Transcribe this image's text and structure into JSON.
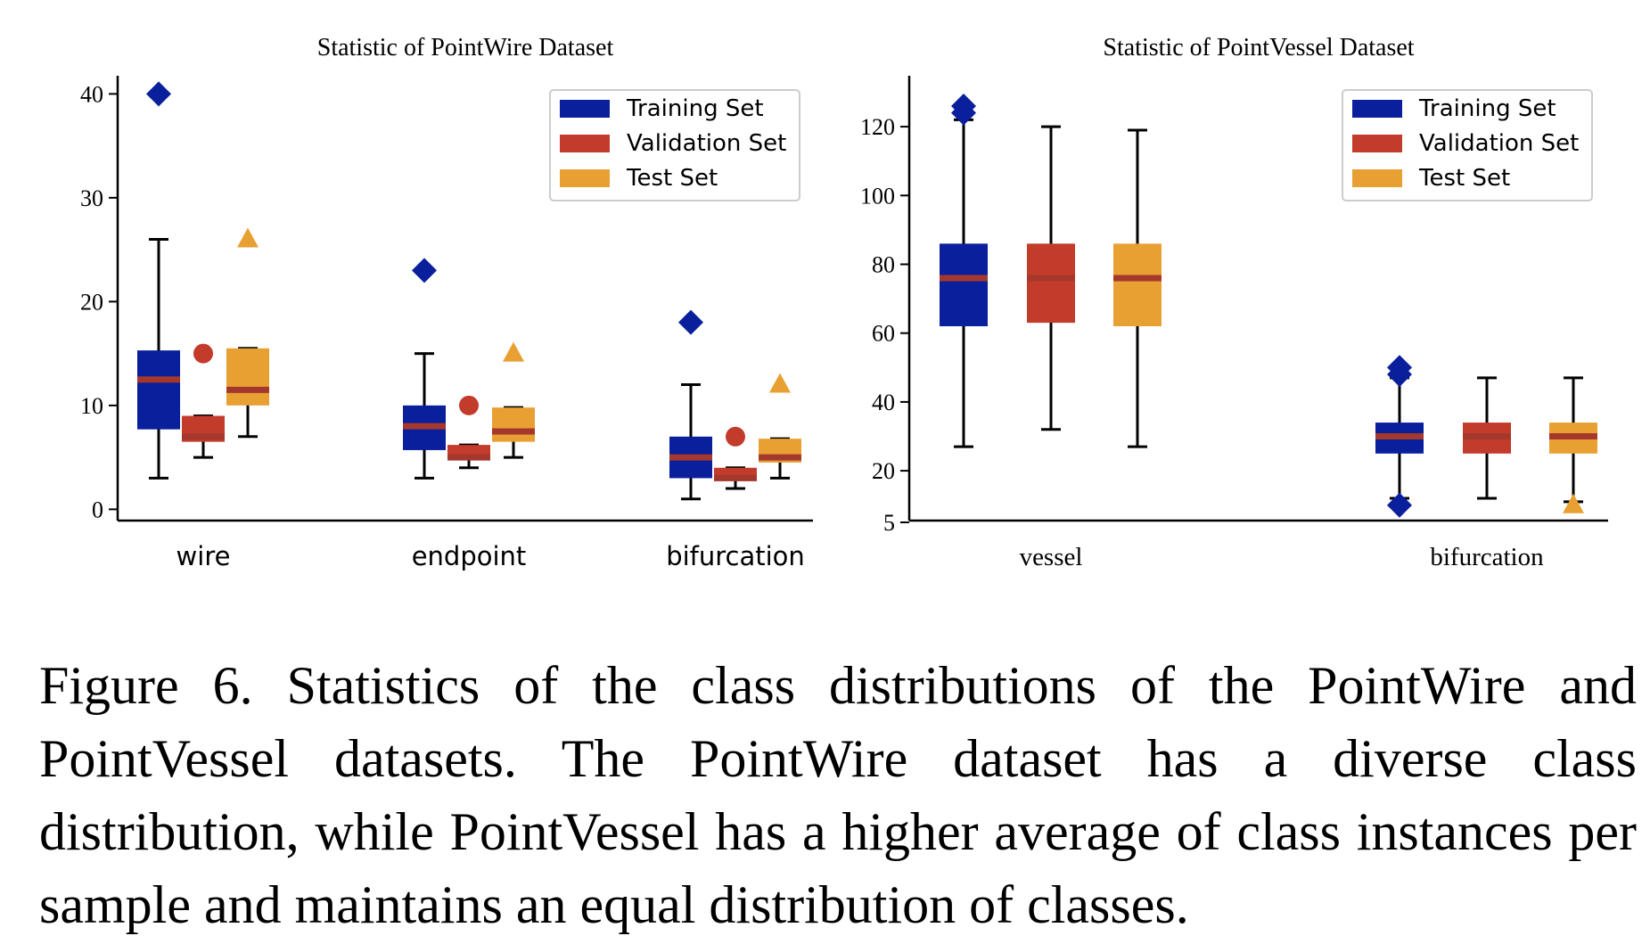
{
  "colors": {
    "training": "#0a1f9c",
    "validation": "#c23b2b",
    "test": "#e8a033",
    "median": "#a5382c"
  },
  "legend_labels": [
    "Training Set",
    "Validation Set",
    "Test Set"
  ],
  "chart_data": [
    {
      "type": "box",
      "title": "Statistic of PointWire Dataset",
      "categories": [
        "wire",
        "endpoint",
        "bifurcation"
      ],
      "yticks": [
        0,
        10,
        20,
        30,
        40
      ],
      "ylim": [
        -1,
        42
      ],
      "legend_placement": "top-right",
      "series": [
        {
          "name": "Training Set",
          "marker": "diamond",
          "boxes": [
            {
              "whislo": 3,
              "q1": 7.7,
              "med": 12.5,
              "q3": 15.3,
              "whishi": 26,
              "fliers": [
                40
              ]
            },
            {
              "whislo": 3,
              "q1": 5.7,
              "med": 8,
              "q3": 10,
              "whishi": 15,
              "fliers": [
                23
              ]
            },
            {
              "whislo": 1,
              "q1": 3,
              "med": 5,
              "q3": 7,
              "whishi": 12,
              "fliers": [
                18
              ]
            }
          ]
        },
        {
          "name": "Validation Set",
          "marker": "circle",
          "boxes": [
            {
              "whislo": 5,
              "q1": 6.5,
              "med": 7,
              "q3": 9,
              "whishi": 9,
              "fliers": [
                15
              ]
            },
            {
              "whislo": 4,
              "q1": 4.8,
              "med": 5,
              "q3": 6.2,
              "whishi": 6.2,
              "fliers": [
                10
              ]
            },
            {
              "whislo": 2,
              "q1": 2.8,
              "med": 3,
              "q3": 4,
              "whishi": 4,
              "fliers": [
                7
              ]
            }
          ]
        },
        {
          "name": "Test Set",
          "marker": "triangle",
          "boxes": [
            {
              "whislo": 7,
              "q1": 10,
              "med": 11.5,
              "q3": 15.5,
              "whishi": 15.5,
              "fliers": [
                26
              ]
            },
            {
              "whislo": 5,
              "q1": 6.5,
              "med": 7.5,
              "q3": 9.8,
              "whishi": 9.8,
              "fliers": [
                15
              ]
            },
            {
              "whislo": 3,
              "q1": 4.5,
              "med": 5,
              "q3": 6.8,
              "whishi": 6.8,
              "fliers": [
                12
              ]
            }
          ]
        }
      ]
    },
    {
      "type": "box",
      "title": "Statistic of PointVessel Dataset",
      "categories": [
        "vessel",
        "bifurcation"
      ],
      "yticks": [
        5,
        20,
        40,
        60,
        80,
        100,
        120
      ],
      "ylim": [
        5,
        130
      ],
      "legend_placement": "top-right",
      "series": [
        {
          "name": "Training Set",
          "marker": "diamond",
          "boxes": [
            {
              "whislo": 27,
              "q1": 62,
              "med": 76,
              "q3": 86,
              "whishi": 122,
              "fliers": [
                124,
                126
              ]
            },
            {
              "whislo": 12,
              "q1": 25,
              "med": 30,
              "q3": 34,
              "whishi": 47,
              "fliers": [
                48,
                50,
                10
              ]
            }
          ]
        },
        {
          "name": "Validation Set",
          "marker": "circle",
          "boxes": [
            {
              "whislo": 32,
              "q1": 63,
              "med": 76,
              "q3": 86,
              "whishi": 120,
              "fliers": []
            },
            {
              "whislo": 12,
              "q1": 25,
              "med": 30,
              "q3": 34,
              "whishi": 47,
              "fliers": []
            }
          ]
        },
        {
          "name": "Test Set",
          "marker": "triangle",
          "boxes": [
            {
              "whislo": 27,
              "q1": 62,
              "med": 76,
              "q3": 86,
              "whishi": 119,
              "fliers": []
            },
            {
              "whislo": 11,
              "q1": 25,
              "med": 30,
              "q3": 34,
              "whishi": 47,
              "fliers": [
                10
              ]
            }
          ]
        }
      ]
    }
  ],
  "caption": "Figure 6. Statistics of the class distributions of the PointWire and PointVessel datasets. The PointWire dataset has a diverse class distribution, while PointVessel has a higher average of class instances per sample and maintains an equal distribution of classes."
}
